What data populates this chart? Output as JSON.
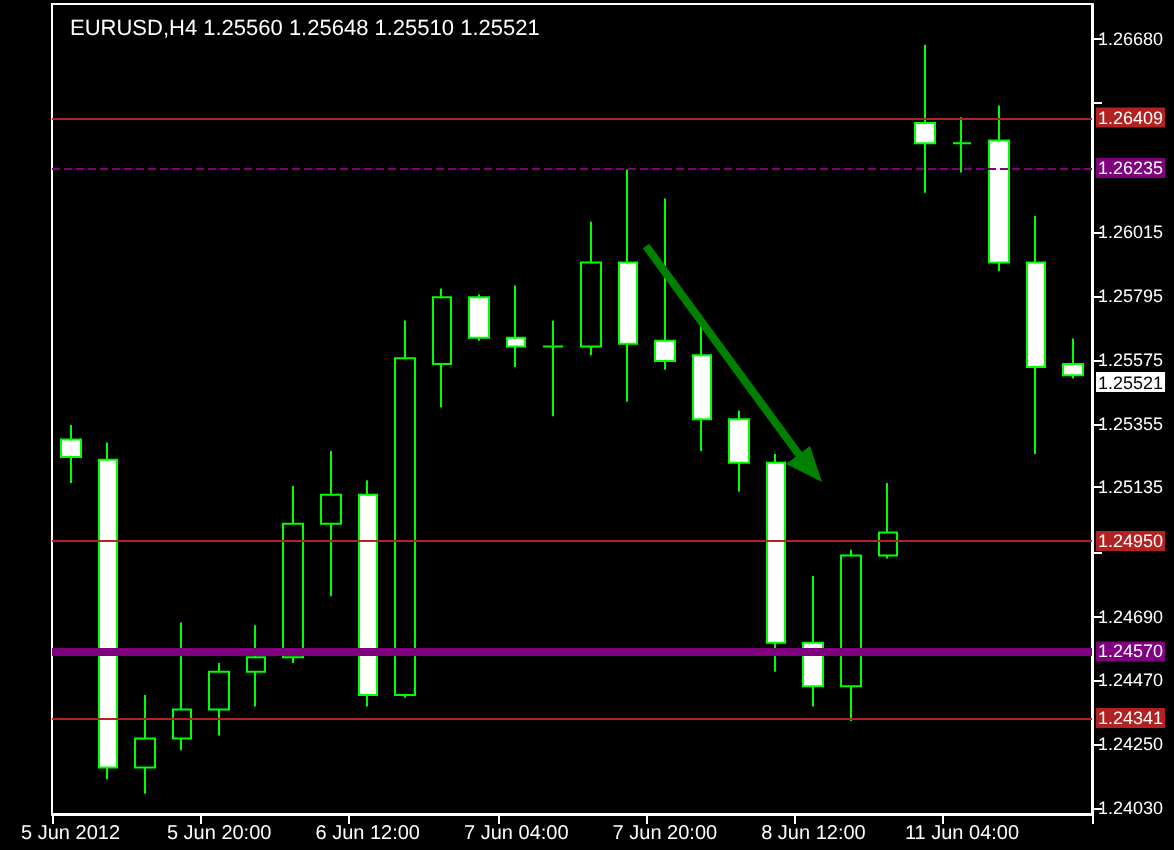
{
  "chart_data": {
    "type": "candlestick",
    "title": "EURUSD,H4 1.25560 1.25648 1.25510 1.25521",
    "categories": [
      "5 Jun 2012",
      null,
      null,
      null,
      "5 Jun 20:00",
      null,
      null,
      null,
      "6 Jun 12:00",
      null,
      null,
      null,
      "7 Jun 04:00",
      null,
      null,
      null,
      "7 Jun 20:00",
      null,
      null,
      null,
      "8 Jun 12:00",
      null,
      null,
      null,
      "11 Jun 04:00",
      null,
      null,
      null
    ],
    "ohlc": [
      [
        1.253,
        1.2535,
        1.2515,
        1.2524
      ],
      [
        1.2523,
        1.2529,
        1.2413,
        1.2417
      ],
      [
        1.2417,
        1.2442,
        1.2408,
        1.2427
      ],
      [
        1.2427,
        1.2467,
        1.2423,
        1.2437
      ],
      [
        1.2437,
        1.2453,
        1.2428,
        1.245
      ],
      [
        1.245,
        1.2466,
        1.2438,
        1.2455
      ],
      [
        1.2455,
        1.2514,
        1.2453,
        1.2501
      ],
      [
        1.2501,
        1.2526,
        1.2476,
        1.2511
      ],
      [
        1.2511,
        1.2516,
        1.2438,
        1.2442
      ],
      [
        1.2442,
        1.2571,
        1.2441,
        1.2558
      ],
      [
        1.2556,
        1.2582,
        1.2541,
        1.2579
      ],
      [
        1.2579,
        1.258,
        1.2564,
        1.2565
      ],
      [
        1.2565,
        1.2583,
        1.2555,
        1.2562
      ],
      [
        1.2562,
        1.2571,
        1.2538,
        1.2562
      ],
      [
        1.2562,
        1.2605,
        1.2559,
        1.2591
      ],
      [
        1.2591,
        1.2623,
        1.2543,
        1.2563
      ],
      [
        1.2564,
        1.2613,
        1.2554,
        1.2557
      ],
      [
        1.2559,
        1.2573,
        1.2526,
        1.2537
      ],
      [
        1.2537,
        1.254,
        1.2512,
        1.2522
      ],
      [
        1.2522,
        1.2525,
        1.245,
        1.246
      ],
      [
        1.246,
        1.2483,
        1.2438,
        1.2445
      ],
      [
        1.2445,
        1.2492,
        1.2433,
        1.249
      ],
      [
        1.249,
        1.2515,
        1.2489,
        1.2498
      ],
      [
        1.2639,
        1.2666,
        1.2615,
        1.2632
      ],
      [
        1.2632,
        1.2641,
        1.2622,
        1.2632
      ],
      [
        1.2633,
        1.2645,
        1.2588,
        1.2591
      ],
      [
        1.2591,
        1.2607,
        1.2525,
        1.2555
      ],
      [
        1.2556,
        1.25648,
        1.2551,
        1.25521
      ]
    ],
    "ylim": [
      1.2401,
      1.268
    ],
    "yticks": [
      {
        "value": 1.2668,
        "label": "1.26680"
      },
      {
        "value": 1.2646,
        "label": null
      },
      {
        "value": 1.26015,
        "label": "1.26015"
      },
      {
        "value": 1.25795,
        "label": "1.25795"
      },
      {
        "value": 1.25575,
        "label": "1.25575"
      },
      {
        "value": 1.25355,
        "label": "1.25355"
      },
      {
        "value": 1.25135,
        "label": "1.25135"
      },
      {
        "value": 1.2491,
        "label": null
      },
      {
        "value": 1.2469,
        "label": "1.24690"
      },
      {
        "value": 1.2447,
        "label": "1.24470"
      },
      {
        "value": 1.2425,
        "label": "1.24250"
      },
      {
        "value": 1.2403,
        "label": "1.24030"
      }
    ],
    "ref_lines": [
      {
        "axis": "y",
        "value": 1.26409,
        "label": "1.26409",
        "color": "#b22222",
        "line_style": "solid"
      },
      {
        "axis": "y",
        "value": 1.26235,
        "label": "1.26235",
        "color": "#800080",
        "line_style": "dashed"
      },
      {
        "axis": "y",
        "value": 1.2495,
        "label": "1.24950",
        "color": "#b22222",
        "line_style": "solid"
      },
      {
        "axis": "y",
        "value": 1.2457,
        "label": "1.24570",
        "color": "#800080",
        "line_style": "solid"
      },
      {
        "axis": "y",
        "value": 1.24341,
        "label": "1.24341",
        "color": "#b22222",
        "line_style": "solid"
      }
    ],
    "annotations": [
      "1.25521"
    ],
    "grid": false
  }
}
